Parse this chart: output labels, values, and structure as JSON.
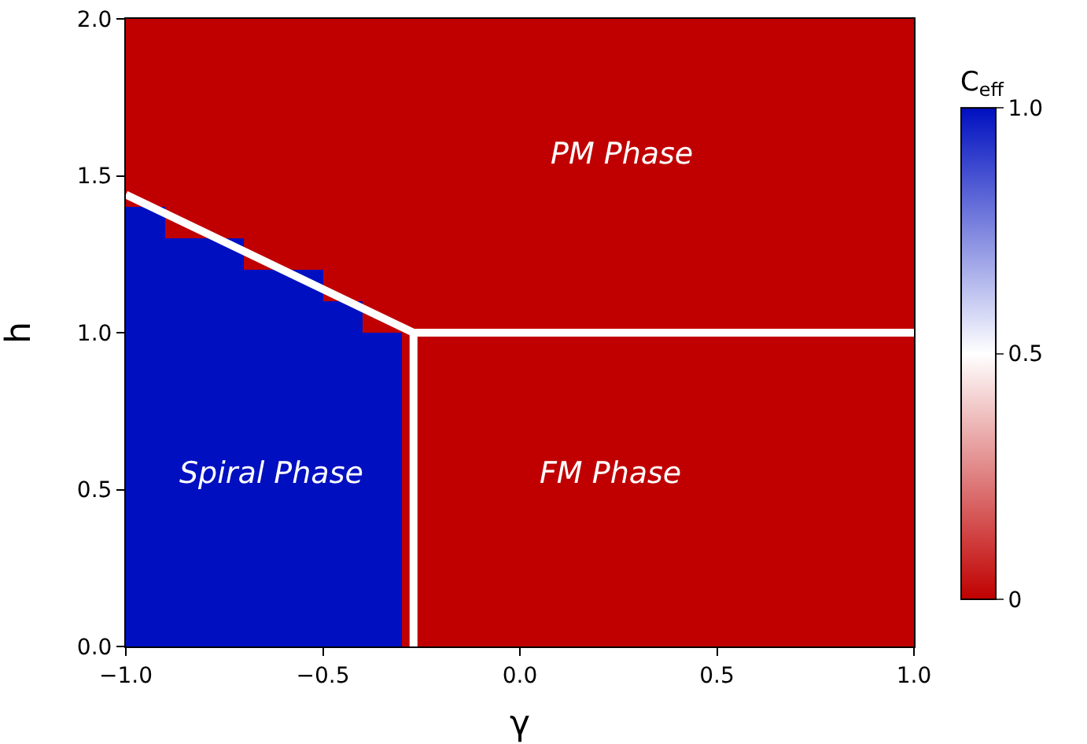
{
  "chart_data": {
    "type": "heatmap",
    "xlabel": "γ",
    "ylabel": "h",
    "clabel": "C$_{eff}$",
    "xlim": [
      -1,
      1
    ],
    "ylim": [
      0,
      2
    ],
    "xticks": [
      {
        "value": -1,
        "label": "−1.0"
      },
      {
        "value": -0.5,
        "label": "−0.5"
      },
      {
        "value": 0,
        "label": "0.0"
      },
      {
        "value": 0.5,
        "label": "0.5"
      },
      {
        "value": 1,
        "label": "1.0"
      }
    ],
    "yticks": [
      {
        "value": 0,
        "label": "0.0"
      },
      {
        "value": 0.5,
        "label": "0.5"
      },
      {
        "value": 1,
        "label": "1.0"
      },
      {
        "value": 1.5,
        "label": "1.5"
      },
      {
        "value": 2,
        "label": "2.0"
      }
    ],
    "clim": [
      0,
      1
    ],
    "cticks": [
      0,
      0.5,
      {
        "value": 1,
        "label": "1.0"
      }
    ],
    "colors": [
      "#c00000",
      "#ffffff",
      "#0010c0"
    ],
    "cells": [
      [
        0,
        0,
        0,
        0,
        0,
        0,
        0,
        0,
        0,
        0,
        0,
        0,
        0,
        0,
        0,
        0,
        0,
        0,
        0,
        0
      ],
      [
        0,
        0,
        0,
        0,
        0,
        0,
        0,
        0,
        0,
        0,
        0,
        0,
        0,
        0,
        0,
        0,
        0,
        0,
        0,
        0
      ],
      [
        0,
        0,
        0,
        0,
        0,
        0,
        0,
        0,
        0,
        0,
        0,
        0,
        0,
        0,
        0,
        0,
        0,
        0,
        0,
        0
      ],
      [
        0,
        0,
        0,
        0,
        0,
        0,
        0,
        0,
        0,
        0,
        0,
        0,
        0,
        0,
        0,
        0,
        0,
        0,
        0,
        0
      ],
      [
        0,
        0,
        0,
        0,
        0,
        0,
        0,
        0,
        0,
        0,
        0,
        0,
        0,
        0,
        0,
        0,
        0,
        0,
        0,
        0
      ],
      [
        0,
        0,
        0,
        0,
        0,
        0,
        0,
        0,
        0,
        0,
        0,
        0,
        0,
        0,
        0,
        0,
        0,
        0,
        0,
        0
      ],
      [
        1,
        0,
        0,
        0,
        0,
        0,
        0,
        0,
        0,
        0,
        0,
        0,
        0,
        0,
        0,
        0,
        0,
        0,
        0,
        0
      ],
      [
        1,
        1,
        1,
        0,
        0,
        0,
        0,
        0,
        0,
        0,
        0,
        0,
        0,
        0,
        0,
        0,
        0,
        0,
        0,
        0
      ],
      [
        1,
        1,
        1,
        1,
        1,
        0,
        0,
        0,
        0,
        0,
        0,
        0,
        0,
        0,
        0,
        0,
        0,
        0,
        0,
        0
      ],
      [
        1,
        1,
        1,
        1,
        1,
        1,
        0,
        0,
        0,
        0,
        0,
        0,
        0,
        0,
        0,
        0,
        0,
        0,
        0,
        0
      ],
      [
        1,
        1,
        1,
        1,
        1,
        1,
        1,
        0,
        0,
        0,
        0,
        0,
        0,
        0,
        0,
        0,
        0,
        0,
        0,
        0
      ],
      [
        1,
        1,
        1,
        1,
        1,
        1,
        1,
        0,
        0,
        0,
        0,
        0,
        0,
        0,
        0,
        0,
        0,
        0,
        0,
        0
      ],
      [
        1,
        1,
        1,
        1,
        1,
        1,
        1,
        0,
        0,
        0,
        0,
        0,
        0,
        0,
        0,
        0,
        0,
        0,
        0,
        0
      ],
      [
        1,
        1,
        1,
        1,
        1,
        1,
        1,
        0,
        0,
        0,
        0,
        0,
        0,
        0,
        0,
        0,
        0,
        0,
        0,
        0
      ],
      [
        1,
        1,
        1,
        1,
        1,
        1,
        1,
        0,
        0,
        0,
        0,
        0,
        0,
        0,
        0,
        0,
        0,
        0,
        0,
        0
      ],
      [
        1,
        1,
        1,
        1,
        1,
        1,
        1,
        0,
        0,
        0,
        0,
        0,
        0,
        0,
        0,
        0,
        0,
        0,
        0,
        0
      ],
      [
        1,
        1,
        1,
        1,
        1,
        1,
        1,
        0,
        0,
        0,
        0,
        0,
        0,
        0,
        0,
        0,
        0,
        0,
        0,
        0
      ],
      [
        1,
        1,
        1,
        1,
        1,
        1,
        1,
        0,
        0,
        0,
        0,
        0,
        0,
        0,
        0,
        0,
        0,
        0,
        0,
        0
      ],
      [
        1,
        1,
        1,
        1,
        1,
        1,
        1,
        0,
        0,
        0,
        0,
        0,
        0,
        0,
        0,
        0,
        0,
        0,
        0,
        0
      ],
      [
        1,
        1,
        1,
        1,
        1,
        1,
        1,
        0,
        0,
        0,
        0,
        0,
        0,
        0,
        0,
        0,
        0,
        0,
        0,
        0
      ]
    ],
    "series": [
      {
        "type": "line",
        "color": "#ffffff",
        "x": [
          -1,
          -0.27,
          1
        ],
        "values": [
          1.44,
          1.0,
          1.0
        ]
      },
      {
        "type": "line",
        "color": "#ffffff",
        "x": [
          -0.27,
          -0.27
        ],
        "values": [
          1.0,
          0
        ]
      }
    ],
    "line_style": "solid",
    "annotations": [
      "PM Phase",
      "Spiral Phase",
      "FM Phase"
    ]
  }
}
